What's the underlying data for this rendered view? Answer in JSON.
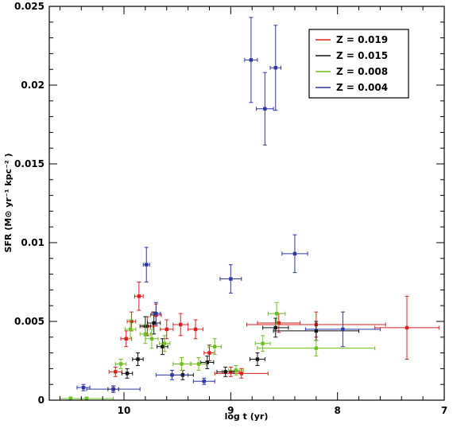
{
  "chart_data": {
    "type": "scatter",
    "xlabel": "log t (yr)",
    "ylabel": "SFR (M⊙ yr⁻¹ kpc⁻² )",
    "xlim": [
      10.7,
      7.0
    ],
    "ylim": [
      0,
      0.025
    ],
    "x_reversed": true,
    "x_ticks": [
      10,
      9,
      8,
      7
    ],
    "y_ticks": [
      0,
      0.005,
      0.01,
      0.015,
      0.02,
      0.025
    ],
    "y_tick_labels": [
      "0",
      "0.005",
      "0.01",
      "0.015",
      "0.02",
      "0.025"
    ],
    "legend_position": "top-right",
    "grid": false,
    "series": [
      {
        "name": "Z = 0.019",
        "color": "#e0201c",
        "points": [
          {
            "x": 10.08,
            "y": 0.0018,
            "xerr": 0.06,
            "yerr": 0.0003
          },
          {
            "x": 9.98,
            "y": 0.0039,
            "xerr": 0.05,
            "yerr": 0.0005
          },
          {
            "x": 9.93,
            "y": 0.005,
            "xerr": 0.04,
            "yerr": 0.0006
          },
          {
            "x": 9.86,
            "y": 0.0066,
            "xerr": 0.04,
            "yerr": 0.0009
          },
          {
            "x": 9.78,
            "y": 0.0047,
            "xerr": 0.05,
            "yerr": 0.0006
          },
          {
            "x": 9.7,
            "y": 0.0054,
            "xerr": 0.05,
            "yerr": 0.0007
          },
          {
            "x": 9.6,
            "y": 0.0045,
            "xerr": 0.06,
            "yerr": 0.0006
          },
          {
            "x": 9.47,
            "y": 0.0048,
            "xerr": 0.07,
            "yerr": 0.0007
          },
          {
            "x": 9.33,
            "y": 0.0045,
            "xerr": 0.07,
            "yerr": 0.0006
          },
          {
            "x": 9.2,
            "y": 0.003,
            "xerr": 0.05,
            "yerr": 0.0005
          },
          {
            "x": 9.0,
            "y": 0.0018,
            "xerr": 0.08,
            "yerr": 0.0003
          },
          {
            "x": 8.9,
            "y": 0.0017,
            "xerr": 0.25,
            "yerr": 0.0003
          },
          {
            "x": 8.55,
            "y": 0.0049,
            "xerr": 0.2,
            "yerr": 0.0006
          },
          {
            "x": 8.2,
            "y": 0.0048,
            "xerr": 0.65,
            "yerr": 0.0008
          },
          {
            "x": 7.35,
            "y": 0.0046,
            "xerr": 0.3,
            "yerr": 0.002
          }
        ]
      },
      {
        "name": "Z = 0.015",
        "color": "#111111",
        "points": [
          {
            "x": 10.1,
            "y": 0.0007,
            "xerr": 0.05,
            "yerr": 0.0002
          },
          {
            "x": 9.97,
            "y": 0.0017,
            "xerr": 0.05,
            "yerr": 0.0003
          },
          {
            "x": 9.87,
            "y": 0.0026,
            "xerr": 0.05,
            "yerr": 0.0004
          },
          {
            "x": 9.8,
            "y": 0.0047,
            "xerr": 0.05,
            "yerr": 0.0006
          },
          {
            "x": 9.72,
            "y": 0.0049,
            "xerr": 0.06,
            "yerr": 0.0007
          },
          {
            "x": 9.64,
            "y": 0.0034,
            "xerr": 0.05,
            "yerr": 0.0005
          },
          {
            "x": 9.45,
            "y": 0.0016,
            "xerr": 0.1,
            "yerr": 0.0003
          },
          {
            "x": 9.22,
            "y": 0.0024,
            "xerr": 0.06,
            "yerr": 0.0004
          },
          {
            "x": 9.05,
            "y": 0.0018,
            "xerr": 0.08,
            "yerr": 0.0003
          },
          {
            "x": 8.75,
            "y": 0.0026,
            "xerr": 0.07,
            "yerr": 0.0004
          },
          {
            "x": 8.58,
            "y": 0.0046,
            "xerr": 0.12,
            "yerr": 0.0006
          },
          {
            "x": 8.2,
            "y": 0.0044,
            "xerr": 0.4,
            "yerr": 0.0006
          }
        ]
      },
      {
        "name": "Z = 0.008",
        "color": "#6cc020",
        "points": [
          {
            "x": 10.5,
            "y": 0.0001,
            "xerr": 0.1,
            "yerr": 0.0001
          },
          {
            "x": 10.35,
            "y": 0.0001,
            "xerr": 0.25,
            "yerr": 0.0001
          },
          {
            "x": 10.03,
            "y": 0.0023,
            "xerr": 0.05,
            "yerr": 0.0003
          },
          {
            "x": 9.94,
            "y": 0.0045,
            "xerr": 0.05,
            "yerr": 0.0006
          },
          {
            "x": 9.8,
            "y": 0.0042,
            "xerr": 0.05,
            "yerr": 0.0006
          },
          {
            "x": 9.74,
            "y": 0.0039,
            "xerr": 0.06,
            "yerr": 0.0006
          },
          {
            "x": 9.62,
            "y": 0.0036,
            "xerr": 0.05,
            "yerr": 0.0005
          },
          {
            "x": 9.46,
            "y": 0.0023,
            "xerr": 0.08,
            "yerr": 0.0004
          },
          {
            "x": 9.3,
            "y": 0.0023,
            "xerr": 0.07,
            "yerr": 0.0004
          },
          {
            "x": 9.15,
            "y": 0.0034,
            "xerr": 0.06,
            "yerr": 0.0005
          },
          {
            "x": 8.95,
            "y": 0.0019,
            "xerr": 0.07,
            "yerr": 0.0003
          },
          {
            "x": 8.7,
            "y": 0.0036,
            "xerr": 0.07,
            "yerr": 0.0005
          },
          {
            "x": 8.57,
            "y": 0.0055,
            "xerr": 0.08,
            "yerr": 0.0007
          },
          {
            "x": 8.2,
            "y": 0.0033,
            "xerr": 0.55,
            "yerr": 0.0005
          }
        ]
      },
      {
        "name": "Z = 0.004",
        "color": "#2c37a0",
        "points": [
          {
            "x": 10.38,
            "y": 0.0008,
            "xerr": 0.06,
            "yerr": 0.0002
          },
          {
            "x": 10.1,
            "y": 0.0007,
            "xerr": 0.25,
            "yerr": 0.0002
          },
          {
            "x": 9.79,
            "y": 0.0086,
            "xerr": 0.03,
            "yerr": 0.0011
          },
          {
            "x": 9.7,
            "y": 0.0055,
            "xerr": 0.04,
            "yerr": 0.0007
          },
          {
            "x": 9.55,
            "y": 0.0016,
            "xerr": 0.15,
            "yerr": 0.0003
          },
          {
            "x": 9.25,
            "y": 0.0012,
            "xerr": 0.1,
            "yerr": 0.0002
          },
          {
            "x": 9.0,
            "y": 0.0077,
            "xerr": 0.1,
            "yerr": 0.0009
          },
          {
            "x": 8.81,
            "y": 0.0216,
            "xerr": 0.06,
            "yerr": 0.0027
          },
          {
            "x": 8.68,
            "y": 0.0185,
            "xerr": 0.08,
            "yerr": 0.0023
          },
          {
            "x": 8.58,
            "y": 0.0211,
            "xerr": 0.05,
            "yerr": 0.0027
          },
          {
            "x": 8.4,
            "y": 0.0093,
            "xerr": 0.12,
            "yerr": 0.0012
          },
          {
            "x": 7.95,
            "y": 0.0045,
            "xerr": 0.35,
            "yerr": 0.0011
          }
        ]
      }
    ]
  }
}
